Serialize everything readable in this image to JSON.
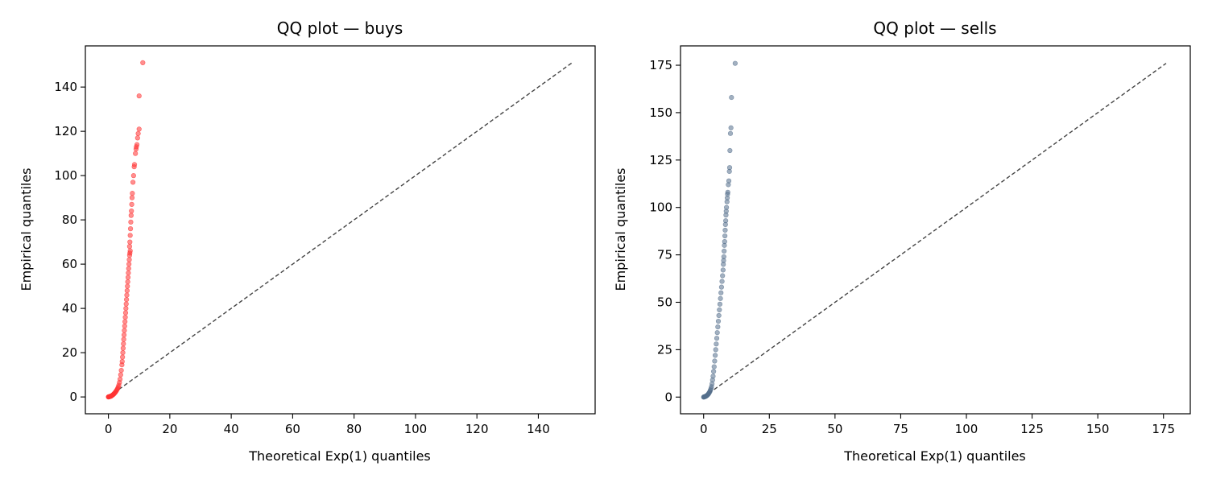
{
  "chart_data": [
    {
      "type": "scatter",
      "title": "QQ plot — buys",
      "xlabel": "Theoretical Exp(1) quantiles",
      "ylabel": "Empirical quantiles",
      "xlim": [
        -7.5,
        158.5
      ],
      "ylim": [
        -7.6,
        158.6
      ],
      "xticks": [
        0,
        20,
        40,
        60,
        80,
        100,
        120,
        140
      ],
      "yticks": [
        0,
        20,
        40,
        60,
        80,
        100,
        120,
        140
      ],
      "grid": false,
      "reference_line": {
        "from": [
          0,
          0
        ],
        "to": [
          151,
          151
        ],
        "style": "dashed",
        "color": "#444444"
      },
      "series": [
        {
          "color": "#ff3333",
          "points": [
            [
              0.0,
              0.0
            ],
            [
              0.05,
              0.02
            ],
            [
              0.1,
              0.05
            ],
            [
              0.2,
              0.08
            ],
            [
              0.3,
              0.12
            ],
            [
              0.4,
              0.16
            ],
            [
              0.5,
              0.2
            ],
            [
              0.6,
              0.25
            ],
            [
              0.7,
              0.3
            ],
            [
              0.8,
              0.35
            ],
            [
              0.9,
              0.4
            ],
            [
              1.0,
              0.5
            ],
            [
              1.2,
              0.7
            ],
            [
              1.4,
              0.9
            ],
            [
              1.6,
              1.1
            ],
            [
              1.8,
              1.4
            ],
            [
              2.0,
              1.7
            ],
            [
              2.2,
              2.0
            ],
            [
              2.4,
              2.4
            ],
            [
              2.6,
              2.8
            ],
            [
              2.8,
              3.3
            ],
            [
              3.0,
              3.8
            ],
            [
              3.2,
              4.5
            ],
            [
              3.4,
              5.3
            ],
            [
              3.6,
              6.5
            ],
            [
              3.8,
              8.0
            ],
            [
              4.0,
              10.0
            ],
            [
              4.2,
              12.0
            ],
            [
              4.4,
              14.5
            ],
            [
              4.5,
              16.0
            ],
            [
              4.6,
              18.0
            ],
            [
              4.7,
              20.0
            ],
            [
              4.8,
              22.0
            ],
            [
              4.9,
              24.0
            ],
            [
              5.0,
              26.0
            ],
            [
              5.1,
              28.0
            ],
            [
              5.2,
              30.0
            ],
            [
              5.3,
              32.0
            ],
            [
              5.4,
              34.0
            ],
            [
              5.5,
              36.0
            ],
            [
              5.6,
              38.0
            ],
            [
              5.7,
              40.0
            ],
            [
              5.8,
              42.0
            ],
            [
              5.9,
              44.0
            ],
            [
              6.0,
              46.0
            ],
            [
              6.1,
              48.0
            ],
            [
              6.2,
              50.0
            ],
            [
              6.3,
              52.0
            ],
            [
              6.4,
              54.0
            ],
            [
              6.5,
              56.0
            ],
            [
              6.6,
              58.0
            ],
            [
              6.7,
              60.0
            ],
            [
              6.8,
              62.0
            ],
            [
              6.9,
              64.0
            ],
            [
              7.0,
              65.0
            ],
            [
              7.1,
              66.0
            ],
            [
              6.9,
              68.0
            ],
            [
              7.0,
              70.0
            ],
            [
              7.1,
              73.0
            ],
            [
              7.2,
              76.0
            ],
            [
              7.3,
              79.0
            ],
            [
              7.4,
              82.0
            ],
            [
              7.5,
              84.0
            ],
            [
              7.6,
              87.0
            ],
            [
              7.7,
              90.0
            ],
            [
              7.8,
              92.0
            ],
            [
              8.0,
              97.0
            ],
            [
              8.2,
              100.0
            ],
            [
              8.4,
              104.0
            ],
            [
              8.5,
              105.0
            ],
            [
              8.8,
              110.0
            ],
            [
              9.0,
              112.0
            ],
            [
              9.1,
              113.0
            ],
            [
              9.3,
              114.0
            ],
            [
              9.5,
              117.0
            ],
            [
              9.7,
              119.0
            ],
            [
              10.0,
              121.0
            ],
            [
              10.0,
              136.0
            ],
            [
              11.2,
              151.0
            ]
          ]
        }
      ]
    },
    {
      "type": "scatter",
      "title": "QQ plot — sells",
      "xlabel": "Theoretical Exp(1) quantiles",
      "ylabel": "Empirical quantiles",
      "xlim": [
        -8.8,
        185.2
      ],
      "ylim": [
        -8.8,
        185.2
      ],
      "xticks": [
        0,
        25,
        50,
        75,
        100,
        125,
        150,
        175
      ],
      "yticks": [
        0,
        25,
        50,
        75,
        100,
        125,
        150,
        175
      ],
      "grid": false,
      "reference_line": {
        "from": [
          0,
          0
        ],
        "to": [
          176,
          176
        ],
        "style": "dashed",
        "color": "#444444"
      },
      "series": [
        {
          "color": "#56708d",
          "points": [
            [
              0.0,
              0.0
            ],
            [
              0.1,
              0.05
            ],
            [
              0.2,
              0.1
            ],
            [
              0.3,
              0.15
            ],
            [
              0.4,
              0.2
            ],
            [
              0.5,
              0.25
            ],
            [
              0.6,
              0.3
            ],
            [
              0.7,
              0.35
            ],
            [
              0.8,
              0.4
            ],
            [
              0.9,
              0.5
            ],
            [
              1.0,
              0.6
            ],
            [
              1.2,
              0.8
            ],
            [
              1.4,
              1.0
            ],
            [
              1.6,
              1.3
            ],
            [
              1.8,
              1.6
            ],
            [
              2.0,
              2.0
            ],
            [
              2.2,
              2.5
            ],
            [
              2.4,
              3.0
            ],
            [
              2.6,
              3.7
            ],
            [
              2.8,
              4.5
            ],
            [
              3.0,
              5.5
            ],
            [
              3.2,
              7.0
            ],
            [
              3.4,
              9.0
            ],
            [
              3.6,
              11.0
            ],
            [
              3.8,
              13.5
            ],
            [
              4.0,
              16.0
            ],
            [
              4.2,
              19.0
            ],
            [
              4.4,
              22.0
            ],
            [
              4.6,
              25.0
            ],
            [
              4.8,
              28.0
            ],
            [
              5.0,
              31.0
            ],
            [
              5.2,
              34.0
            ],
            [
              5.4,
              37.0
            ],
            [
              5.6,
              40.0
            ],
            [
              5.8,
              43.0
            ],
            [
              6.0,
              46.0
            ],
            [
              6.2,
              49.0
            ],
            [
              6.4,
              52.0
            ],
            [
              6.6,
              55.0
            ],
            [
              6.8,
              58.0
            ],
            [
              7.0,
              61.0
            ],
            [
              7.2,
              64.0
            ],
            [
              7.4,
              67.0
            ],
            [
              7.5,
              70.0
            ],
            [
              7.6,
              72.0
            ],
            [
              7.7,
              74.0
            ],
            [
              7.8,
              77.0
            ],
            [
              7.9,
              80.0
            ],
            [
              8.0,
              82.0
            ],
            [
              8.1,
              85.0
            ],
            [
              8.2,
              88.0
            ],
            [
              8.3,
              91.0
            ],
            [
              8.4,
              93.0
            ],
            [
              8.5,
              96.0
            ],
            [
              8.6,
              98.0
            ],
            [
              8.7,
              100.0
            ],
            [
              8.9,
              103.0
            ],
            [
              9.0,
              105.0
            ],
            [
              9.1,
              107.0
            ],
            [
              9.2,
              108.0
            ],
            [
              9.4,
              112.0
            ],
            [
              9.6,
              114.0
            ],
            [
              9.8,
              119.0
            ],
            [
              9.9,
              121.0
            ],
            [
              10.0,
              130.0
            ],
            [
              10.2,
              139.0
            ],
            [
              10.4,
              142.0
            ],
            [
              10.6,
              158.0
            ],
            [
              12.0,
              176.0
            ]
          ]
        }
      ]
    }
  ]
}
